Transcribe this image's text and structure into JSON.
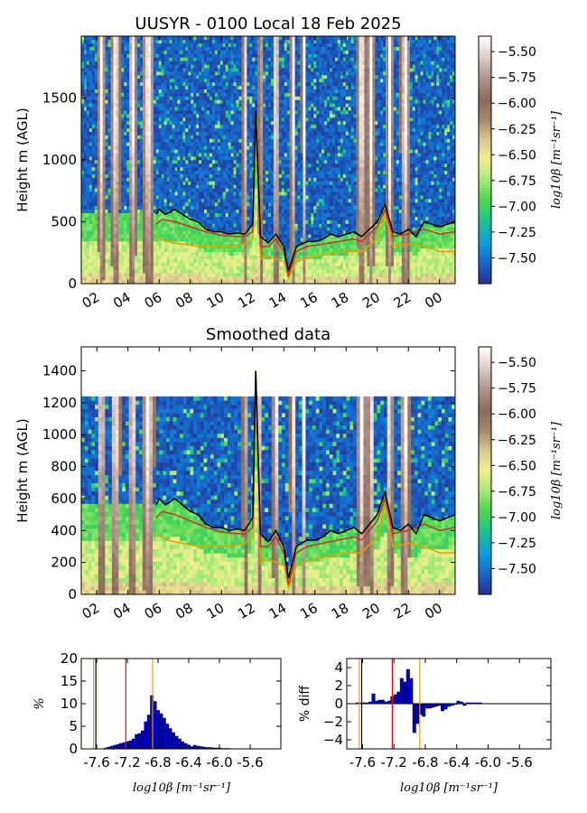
{
  "chart_data": [
    {
      "type": "heatmap",
      "title": "UUSYR - 0100 Local 18 Feb 2025",
      "xlabel": "",
      "ylabel": "Height m (AGL)",
      "x_ticks": [
        "02",
        "04",
        "06",
        "08",
        "10",
        "12",
        "14",
        "16",
        "18",
        "20",
        "22",
        "00"
      ],
      "x_range_hours": [
        1,
        25
      ],
      "ylim": [
        0,
        2000
      ],
      "y_ticks": [
        0,
        500,
        1000,
        1500
      ],
      "colorbar": {
        "label": "log10β [m⁻¹sr⁻¹]",
        "range": [
          -7.75,
          -5.35
        ],
        "ticks": [
          "−5.50",
          "−5.75",
          "−6.00",
          "−6.25",
          "−6.50",
          "−6.75",
          "−7.00",
          "−7.25",
          "−7.50"
        ],
        "tick_values": [
          -5.5,
          -5.75,
          -6.0,
          -6.25,
          -6.5,
          -6.75,
          -7.0,
          -7.25,
          -7.5
        ]
      },
      "overlay_lines": [
        {
          "color": "#000000",
          "points": [
            [
              5.8,
              560
            ],
            [
              6.0,
              600
            ],
            [
              6.4,
              560
            ],
            [
              7.0,
              600
            ],
            [
              7.5,
              560
            ],
            [
              8.0,
              520
            ],
            [
              8.5,
              500
            ],
            [
              9.0,
              440
            ],
            [
              9.5,
              420
            ],
            [
              10.0,
              420
            ],
            [
              10.5,
              400
            ],
            [
              11.0,
              410
            ],
            [
              11.5,
              400
            ],
            [
              12.0,
              480
            ],
            [
              12.2,
              1400
            ],
            [
              12.5,
              380
            ],
            [
              13.0,
              330
            ],
            [
              13.5,
              400
            ],
            [
              14.0,
              300
            ],
            [
              14.3,
              100
            ],
            [
              14.8,
              300
            ],
            [
              15.5,
              340
            ],
            [
              16.0,
              340
            ],
            [
              16.5,
              360
            ],
            [
              17.0,
              400
            ],
            [
              17.5,
              380
            ],
            [
              18.0,
              400
            ],
            [
              18.5,
              420
            ],
            [
              19.0,
              380
            ],
            [
              20.0,
              500
            ],
            [
              20.5,
              640
            ],
            [
              21.0,
              420
            ],
            [
              21.5,
              400
            ],
            [
              22.0,
              440
            ],
            [
              22.5,
              380
            ],
            [
              23.0,
              500
            ],
            [
              23.5,
              480
            ],
            [
              24.0,
              460
            ],
            [
              25.0,
              500
            ]
          ]
        },
        {
          "color": "#cc3322",
          "points": [
            [
              5.8,
              480
            ],
            [
              6.2,
              520
            ],
            [
              7.0,
              500
            ],
            [
              8.0,
              460
            ],
            [
              9.0,
              420
            ],
            [
              10.0,
              390
            ],
            [
              11.0,
              380
            ],
            [
              11.5,
              380
            ],
            [
              12.0,
              420
            ],
            [
              12.2,
              1400
            ],
            [
              12.5,
              300
            ],
            [
              13.0,
              300
            ],
            [
              13.5,
              360
            ],
            [
              14.0,
              260
            ],
            [
              14.3,
              60
            ],
            [
              14.8,
              260
            ],
            [
              15.5,
              300
            ],
            [
              16.5,
              320
            ],
            [
              17.5,
              340
            ],
            [
              18.5,
              360
            ],
            [
              19.0,
              340
            ],
            [
              20.0,
              460
            ],
            [
              20.5,
              600
            ],
            [
              21.0,
              380
            ],
            [
              22.0,
              400
            ],
            [
              23.0,
              440
            ],
            [
              24.0,
              400
            ],
            [
              25.0,
              420
            ]
          ]
        },
        {
          "color": "#e8a000",
          "points": [
            [
              5.8,
              380
            ],
            [
              6.5,
              340
            ],
            [
              7.5,
              320
            ],
            [
              8.5,
              300
            ],
            [
              9.5,
              300
            ],
            [
              10.5,
              300
            ],
            [
              11.5,
              320
            ],
            [
              12.0,
              360
            ],
            [
              12.2,
              1400
            ],
            [
              12.5,
              200
            ],
            [
              13.0,
              220
            ],
            [
              14.0,
              180
            ],
            [
              14.3,
              40
            ],
            [
              14.8,
              180
            ],
            [
              16.0,
              220
            ],
            [
              17.0,
              240
            ],
            [
              18.0,
              260
            ],
            [
              19.0,
              260
            ],
            [
              20.0,
              360
            ],
            [
              20.5,
              560
            ],
            [
              21.0,
              300
            ],
            [
              22.0,
              320
            ],
            [
              23.0,
              300
            ],
            [
              24.0,
              260
            ],
            [
              25.0,
              260
            ]
          ]
        }
      ]
    },
    {
      "type": "heatmap",
      "title": "Smoothed data",
      "xlabel": "",
      "ylabel": "Height m (AGL)",
      "x_ticks": [
        "02",
        "04",
        "06",
        "08",
        "10",
        "12",
        "14",
        "16",
        "18",
        "20",
        "22",
        "00"
      ],
      "x_range_hours": [
        1,
        25
      ],
      "ylim": [
        0,
        1550
      ],
      "y_ticks": [
        0,
        200,
        400,
        600,
        800,
        1000,
        1200,
        1400
      ],
      "colorbar": {
        "label": "log10β [m⁻¹sr⁻¹]",
        "range": [
          -7.75,
          -5.35
        ],
        "ticks": [
          "−5.50",
          "−5.75",
          "−6.00",
          "−6.25",
          "−6.50",
          "−6.75",
          "−7.00",
          "−7.25",
          "−7.50"
        ],
        "tick_values": [
          -5.5,
          -5.75,
          -6.0,
          -6.25,
          -6.5,
          -6.75,
          -7.0,
          -7.25,
          -7.5
        ]
      },
      "overlay_lines": [
        {
          "color": "#000000",
          "points": [
            [
              5.8,
              560
            ],
            [
              6.0,
              600
            ],
            [
              6.4,
              560
            ],
            [
              7.0,
              600
            ],
            [
              7.5,
              560
            ],
            [
              8.0,
              520
            ],
            [
              8.5,
              500
            ],
            [
              9.0,
              440
            ],
            [
              9.5,
              420
            ],
            [
              10.0,
              420
            ],
            [
              10.5,
              400
            ],
            [
              11.0,
              410
            ],
            [
              11.5,
              400
            ],
            [
              12.0,
              480
            ],
            [
              12.2,
              1400
            ],
            [
              12.5,
              380
            ],
            [
              13.0,
              330
            ],
            [
              13.5,
              400
            ],
            [
              14.0,
              300
            ],
            [
              14.3,
              100
            ],
            [
              14.8,
              300
            ],
            [
              15.5,
              340
            ],
            [
              16.0,
              340
            ],
            [
              16.5,
              360
            ],
            [
              17.0,
              400
            ],
            [
              17.5,
              380
            ],
            [
              18.0,
              400
            ],
            [
              18.5,
              420
            ],
            [
              19.0,
              380
            ],
            [
              20.0,
              500
            ],
            [
              20.5,
              640
            ],
            [
              21.0,
              420
            ],
            [
              21.5,
              400
            ],
            [
              22.0,
              440
            ],
            [
              22.5,
              380
            ],
            [
              23.0,
              500
            ],
            [
              23.5,
              480
            ],
            [
              24.0,
              460
            ],
            [
              25.0,
              500
            ]
          ]
        },
        {
          "color": "#cc3322",
          "points": [
            [
              5.8,
              480
            ],
            [
              6.2,
              520
            ],
            [
              7.0,
              500
            ],
            [
              8.0,
              460
            ],
            [
              9.0,
              420
            ],
            [
              10.0,
              390
            ],
            [
              11.0,
              380
            ],
            [
              11.5,
              380
            ],
            [
              12.0,
              420
            ],
            [
              12.2,
              1400
            ],
            [
              12.5,
              300
            ],
            [
              13.0,
              300
            ],
            [
              13.5,
              360
            ],
            [
              14.0,
              260
            ],
            [
              14.3,
              60
            ],
            [
              14.8,
              260
            ],
            [
              15.5,
              300
            ],
            [
              16.5,
              320
            ],
            [
              17.5,
              340
            ],
            [
              18.5,
              360
            ],
            [
              19.0,
              340
            ],
            [
              20.0,
              460
            ],
            [
              20.5,
              600
            ],
            [
              21.0,
              380
            ],
            [
              22.0,
              400
            ],
            [
              23.0,
              440
            ],
            [
              24.0,
              400
            ],
            [
              25.0,
              420
            ]
          ]
        },
        {
          "color": "#e8a000",
          "points": [
            [
              5.8,
              380
            ],
            [
              6.5,
              340
            ],
            [
              7.5,
              320
            ],
            [
              8.5,
              300
            ],
            [
              9.5,
              300
            ],
            [
              10.5,
              300
            ],
            [
              11.5,
              320
            ],
            [
              12.0,
              360
            ],
            [
              12.2,
              1400
            ],
            [
              12.5,
              200
            ],
            [
              13.0,
              220
            ],
            [
              14.0,
              180
            ],
            [
              14.3,
              40
            ],
            [
              14.8,
              180
            ],
            [
              16.0,
              220
            ],
            [
              17.0,
              240
            ],
            [
              18.0,
              260
            ],
            [
              19.0,
              260
            ],
            [
              20.0,
              360
            ],
            [
              20.5,
              560
            ],
            [
              21.0,
              300
            ],
            [
              22.0,
              320
            ],
            [
              23.0,
              300
            ],
            [
              24.0,
              260
            ],
            [
              25.0,
              260
            ]
          ]
        }
      ]
    },
    {
      "type": "bar",
      "title": "",
      "xlabel": "log10β [m⁻¹sr⁻¹]",
      "ylabel": "%",
      "xlim": [
        -7.8,
        -5.2
      ],
      "ylim": [
        0,
        20
      ],
      "x_ticks": [
        "-7.6",
        "-7.2",
        "-6.8",
        "-6.4",
        "-6.0",
        "-5.6"
      ],
      "x_tick_values": [
        -7.6,
        -7.2,
        -6.8,
        -6.4,
        -6.0,
        -5.6
      ],
      "y_ticks": [
        "0",
        "5",
        "10",
        "15",
        "20"
      ],
      "y_tick_values": [
        0,
        5,
        10,
        15,
        20
      ],
      "bin_width": 0.04,
      "bin_start": -7.5,
      "values": [
        0.2,
        0.4,
        0.6,
        0.8,
        1.0,
        1.2,
        1.4,
        1.6,
        1.8,
        2.2,
        3.2,
        3.4,
        4.0,
        6.0,
        7.5,
        11.8,
        10.5,
        8.5,
        7.8,
        6.8,
        5.5,
        4.5,
        3.6,
        2.8,
        2.2,
        1.6,
        1.2,
        0.8,
        0.5,
        0.8,
        0.6,
        0.5,
        0.4,
        0.3,
        0.3,
        0.2,
        0.2,
        0.2,
        0.1,
        0.1,
        0.1
      ],
      "markers": [
        {
          "x": -7.61,
          "color": "#000000"
        },
        {
          "x": -7.64,
          "color": "#e8a000"
        },
        {
          "x": -7.22,
          "color": "#ff0000"
        },
        {
          "x": -6.87,
          "color": "#e8a000"
        }
      ]
    },
    {
      "type": "bar",
      "title": "",
      "xlabel": "log10β [m⁻¹sr⁻¹]",
      "ylabel": "% diff",
      "xlim": [
        -7.8,
        -5.2
      ],
      "ylim": [
        -5,
        5
      ],
      "x_ticks": [
        "-7.6",
        "-7.2",
        "-6.8",
        "-6.4",
        "-6.0",
        "-5.6"
      ],
      "x_tick_values": [
        -7.6,
        -7.2,
        -6.8,
        -6.4,
        -6.0,
        -5.6
      ],
      "y_ticks": [
        "−4",
        "−2",
        "0",
        "2",
        "4"
      ],
      "y_tick_values": [
        -4,
        -2,
        0,
        2,
        4
      ],
      "bin_width": 0.04,
      "bin_start": -7.68,
      "values": [
        0.1,
        0.1,
        0.1,
        0.1,
        0.2,
        1.1,
        0.3,
        0.4,
        0.4,
        0.2,
        0.3,
        0.8,
        1.0,
        1.3,
        2.8,
        2.4,
        3.8,
        2.8,
        -3.2,
        -2.2,
        -1.2,
        -1.4,
        -0.5,
        -0.5,
        -0.4,
        -0.3,
        -0.2,
        -0.8,
        -0.6,
        -0.3,
        -0.2,
        -0.1,
        0.3,
        0.2,
        -0.2,
        0.1,
        0.1,
        0.1,
        0.1,
        0.1
      ],
      "markers": [
        {
          "x": -7.61,
          "color": "#000000"
        },
        {
          "x": -7.64,
          "color": "#e8a000"
        },
        {
          "x": -7.22,
          "color": "#ff0000"
        },
        {
          "x": -6.87,
          "color": "#e8a000"
        }
      ]
    }
  ]
}
